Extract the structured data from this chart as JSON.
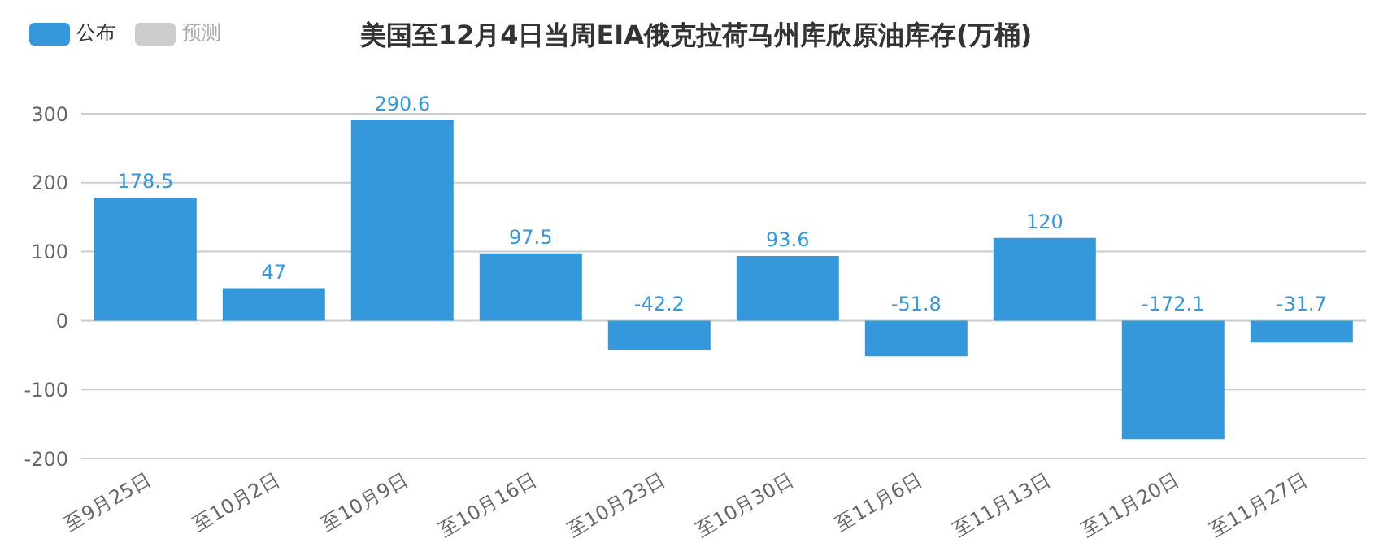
{
  "chart_data": {
    "type": "bar",
    "title": "美国至12月4日当周EIA俄克拉荷马州库欣原油库存(万桶)",
    "categories": [
      "至9月25日",
      "至10月2日",
      "至10月9日",
      "至10月16日",
      "至10月23日",
      "至10月30日",
      "至11月6日",
      "至11月13日",
      "至11月20日",
      "至11月27日"
    ],
    "series": [
      {
        "name": "公布",
        "color": "#3498db",
        "values": [
          178.5,
          47,
          290.6,
          97.5,
          -42.2,
          93.6,
          -51.8,
          120,
          -172.1,
          -31.7
        ]
      },
      {
        "name": "预测",
        "color": "#cccccc",
        "values": [
          null,
          null,
          null,
          null,
          null,
          null,
          null,
          null,
          null,
          null
        ]
      }
    ],
    "ylim": [
      -200,
      300
    ],
    "yticks": [
      -200,
      -100,
      0,
      100,
      200,
      300
    ],
    "grid": "y",
    "legend": "top left",
    "data_labels": true
  }
}
